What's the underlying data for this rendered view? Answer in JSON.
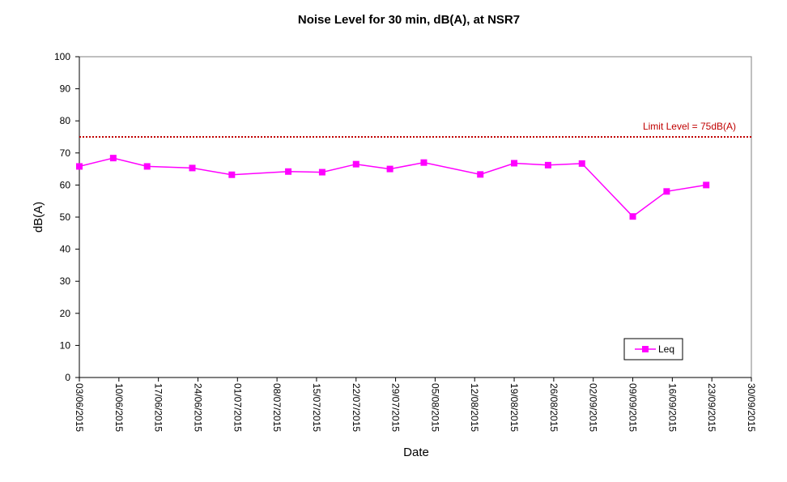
{
  "chart_data": {
    "type": "line",
    "title": "Noise Level for 30 min, dB(A), at NSR7",
    "xlabel": "Date",
    "ylabel": "dB(A)",
    "ylim": [
      0,
      100
    ],
    "y_ticks": [
      0,
      10,
      20,
      30,
      40,
      50,
      60,
      70,
      80,
      90,
      100
    ],
    "x_ticks": [
      "03/06/2015",
      "10/06/2015",
      "17/06/2015",
      "24/06/2015",
      "01/07/2015",
      "08/07/2015",
      "15/07/2015",
      "22/07/2015",
      "29/07/2015",
      "05/08/2015",
      "12/08/2015",
      "19/08/2015",
      "26/08/2015",
      "02/09/2015",
      "09/09/2015",
      "16/09/2015",
      "23/09/2015",
      "30/09/2015"
    ],
    "xlim": [
      "2015-06-03",
      "2015-09-30"
    ],
    "grid": false,
    "legend_position": "bottom-right",
    "series": [
      {
        "name": "Leq",
        "color": "#ff00ff",
        "marker": "square",
        "points": [
          {
            "x": "2015-06-03",
            "y": 65.8
          },
          {
            "x": "2015-06-09",
            "y": 68.4
          },
          {
            "x": "2015-06-15",
            "y": 65.8
          },
          {
            "x": "2015-06-23",
            "y": 65.3
          },
          {
            "x": "2015-06-30",
            "y": 63.2
          },
          {
            "x": "2015-07-10",
            "y": 64.2
          },
          {
            "x": "2015-07-16",
            "y": 64.0
          },
          {
            "x": "2015-07-22",
            "y": 66.5
          },
          {
            "x": "2015-07-28",
            "y": 65.0
          },
          {
            "x": "2015-08-03",
            "y": 67.0
          },
          {
            "x": "2015-08-13",
            "y": 63.3
          },
          {
            "x": "2015-08-19",
            "y": 66.8
          },
          {
            "x": "2015-08-25",
            "y": 66.2
          },
          {
            "x": "2015-08-31",
            "y": 66.7
          },
          {
            "x": "2015-09-09",
            "y": 50.2
          },
          {
            "x": "2015-09-15",
            "y": 58.0
          },
          {
            "x": "2015-09-22",
            "y": 60.0
          }
        ]
      }
    ],
    "limit_line": {
      "label": "Limit Level  = 75dB(A)",
      "value": 75,
      "color": "#c00000",
      "style": "dotted"
    }
  }
}
